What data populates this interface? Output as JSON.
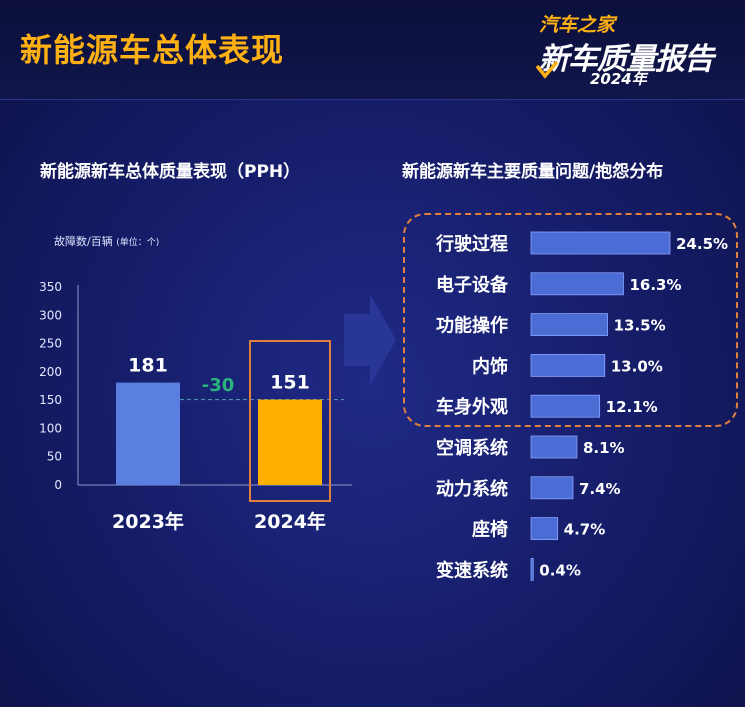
{
  "header": {
    "title": "新能源车总体表现",
    "logo": {
      "brand": "汽车之家",
      "main": "新车质量报告",
      "year": "2024年"
    }
  },
  "left_chart": {
    "title": "新能源新车总体质量表现（PPH）",
    "unit_label": "故障数/百辆",
    "unit_note": "(单位：个)",
    "diff_label": "-30"
  },
  "right_chart": {
    "title": "新能源新车主要质量问题/抱怨分布"
  },
  "colors": {
    "bar_2023": "#5b7fe0",
    "bar_2024": "#ffb000",
    "highlight": "#e0803c",
    "diff_green": "#2bb37c",
    "hbar": "#4a6cd4"
  },
  "chart_data": [
    {
      "type": "bar",
      "title": "新能源新车总体质量表现（PPH）",
      "ylabel": "故障数/百辆",
      "categories": [
        "2023年",
        "2024年"
      ],
      "values": [
        181,
        151
      ],
      "ylim": [
        0,
        350
      ],
      "yticks": [
        0,
        50,
        100,
        150,
        200,
        250,
        300,
        350
      ],
      "highlighted": "2024年",
      "annotation": "-30"
    },
    {
      "type": "bar",
      "orientation": "horizontal",
      "title": "新能源新车主要质量问题/抱怨分布",
      "categories": [
        "行驶过程",
        "电子设备",
        "功能操作",
        "内饰",
        "车身外观",
        "空调系统",
        "动力系统",
        "座椅",
        "变速系统"
      ],
      "values": [
        24.5,
        16.3,
        13.5,
        13.0,
        12.1,
        8.1,
        7.4,
        4.7,
        0.4
      ],
      "value_labels": [
        "24.5%",
        "16.3%",
        "13.5%",
        "13.0%",
        "12.1%",
        "8.1%",
        "7.4%",
        "4.7%",
        "0.4%"
      ],
      "highlighted_count": 5
    }
  ]
}
